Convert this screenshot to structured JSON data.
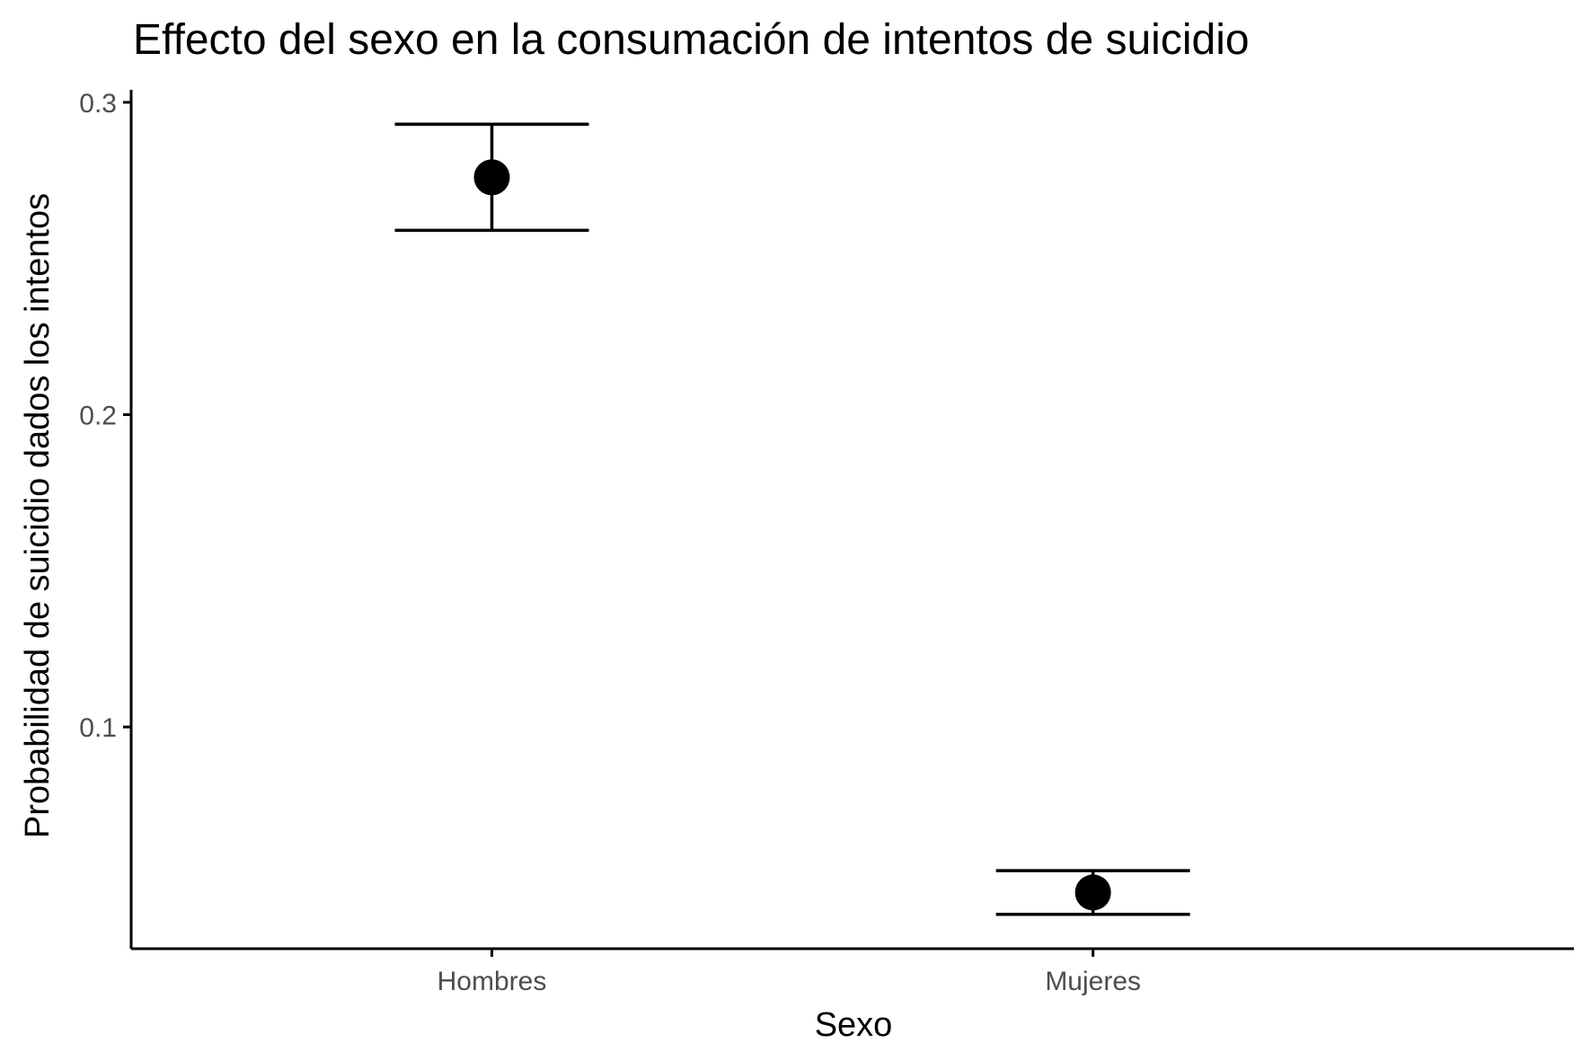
{
  "chart_data": {
    "type": "scatter",
    "title": "Effecto del sexo en la consumación de intentos de suicidio",
    "xlabel": "Sexo",
    "ylabel": "Probabilidad de suicidio dados los intentos",
    "categories": [
      "Hombres",
      "Mujeres"
    ],
    "series": [
      {
        "values": [
          0.276,
          0.047
        ],
        "lower": [
          0.259,
          0.04
        ],
        "upper": [
          0.293,
          0.054
        ]
      }
    ],
    "yticks": [
      0.1,
      0.2,
      0.3
    ],
    "ytick_labels": [
      "0.1",
      "0.2",
      "0.3"
    ],
    "ylim": [
      0.029,
      0.304
    ],
    "grid": false,
    "legend": "none",
    "colors": {
      "point": "#000000",
      "axis": "#000000",
      "tick_text": "#4d4d4d"
    }
  }
}
